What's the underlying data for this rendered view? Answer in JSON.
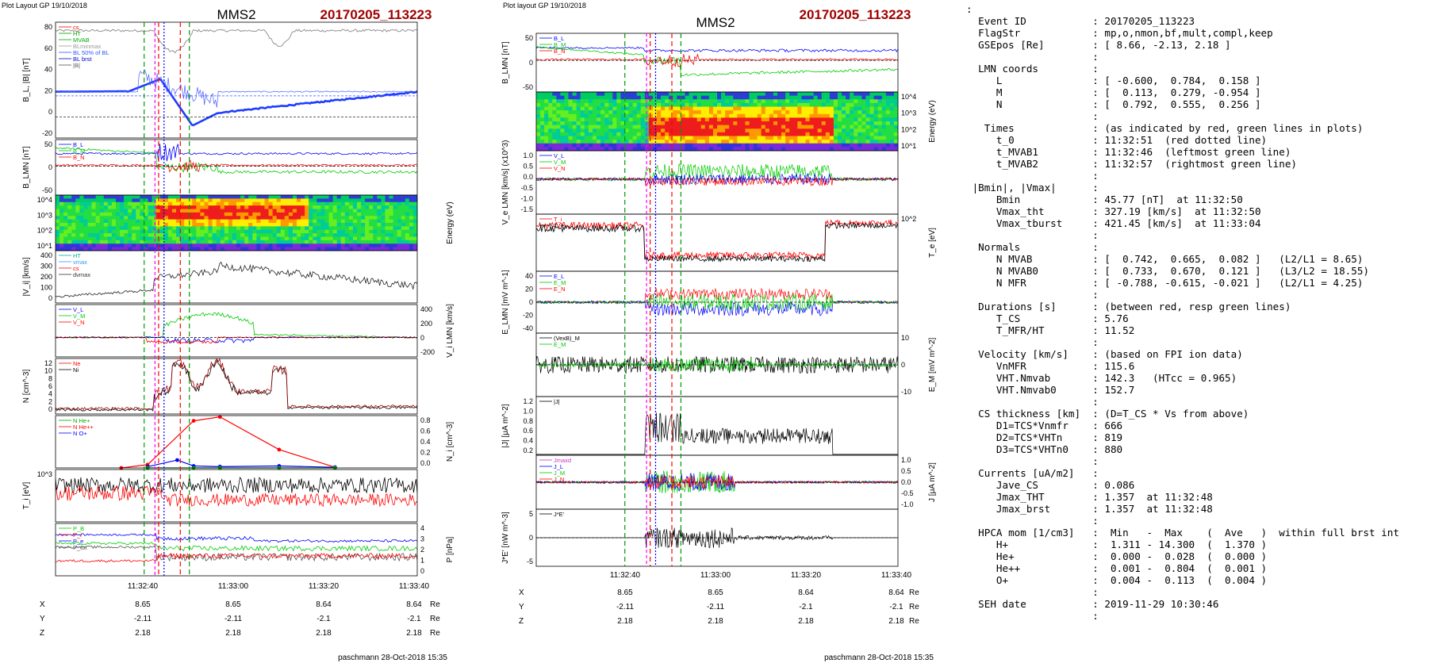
{
  "left_figure": {
    "header": "Plot Layout GP 19/10/2018",
    "spacecraft": "MMS2",
    "event_label": "20170205_113223",
    "footer": "paschmann 28-Oct-2018 15:35",
    "time_ticks": [
      "11:32:40",
      "11:33:00",
      "11:33:20",
      "11:33:40"
    ],
    "ephemeris": {
      "rows": [
        {
          "label": "X",
          "values": [
            "8.65",
            "8.65",
            "8.64",
            "8.64"
          ],
          "unit": "Re"
        },
        {
          "label": "Y",
          "values": [
            "-2.11",
            "-2.11",
            "-2.1",
            "-2.1"
          ],
          "unit": "Re"
        },
        {
          "label": "Z",
          "values": [
            "2.18",
            "2.18",
            "2.18",
            "2.18"
          ],
          "unit": "Re"
        }
      ]
    }
  },
  "right_figure": {
    "header": "Plot layout GP 19/10/2018",
    "spacecraft": "MMS2",
    "event_label": "20170205_113223",
    "footer": "paschmann 28-Oct-2018 15:35",
    "time_ticks": [
      "11:32:40",
      "11:33:00",
      "11:33:20",
      "11:33:40"
    ],
    "ephemeris": {
      "rows": [
        {
          "label": "X",
          "values": [
            "8.65",
            "8.65",
            "8.64",
            "8.64"
          ],
          "unit": "Re"
        },
        {
          "label": "Y",
          "values": [
            "-2.11",
            "-2.11",
            "-2.1",
            "-2.1"
          ],
          "unit": "Re"
        },
        {
          "label": "Z",
          "values": [
            "2.18",
            "2.18",
            "2.18",
            "2.18"
          ],
          "unit": "Re"
        }
      ]
    }
  },
  "summary_lines": [
    ":",
    "  Event ID           : 20170205_113223",
    "  FlagStr            : mp,o,nmon,bf,mult,compl,keep",
    "  GSEpos [Re]        : [ 8.66, -2.13, 2.18 ]",
    "                     :",
    "  LMN coords         :",
    "     L               : [ -0.600,  0.784,  0.158 ]",
    "     M               : [  0.113,  0.279, -0.954 ]",
    "     N               : [  0.792,  0.555,  0.256 ]",
    "                     :",
    "   Times             : (as indicated by red, green lines in plots)",
    "     t_0             : 11:32:51  (red dotted line)",
    "     t_MVAB1         : 11:32:46  (leftmost green line)",
    "     t_MVAB2         : 11:32:57  (rightmost green line)",
    "                     :",
    " |Bmin|, |Vmax|      :",
    "     Bmin            : 45.77 [nT]  at 11:32:50",
    "     Vmax_tht        : 327.19 [km/s]  at 11:32:50",
    "     Vmax_tburst     : 421.45 [km/s]  at 11:33:04",
    "                     :",
    "  Normals            :",
    "     N MVAB          : [  0.742,  0.665,  0.082 ]   (L2/L1 = 8.65)",
    "     N MVAB0         : [  0.733,  0.670,  0.121 ]   (L3/L2 = 18.55)",
    "     N MFR           : [ -0.788, -0.615, -0.021 ]   (L2/L1 = 4.25)",
    "                     :",
    "  Durations [s]      : (between red, resp green lines)",
    "     T_CS            : 5.76",
    "     T_MFR/HT        : 11.52",
    "                     :",
    "  Velocity [km/s]    : (based on FPI ion data)",
    "     VnMFR           : 115.6",
    "     VHT.Nmvab       : 142.3   (HTcc = 0.965)",
    "     VHT.Nmvab0      : 152.7",
    "                     :",
    "  CS thickness [km]  : (D=T_CS * Vs from above)",
    "     D1=TCS*Vnmfr    : 666",
    "     D2=TCS*VHTn     : 819",
    "     D3=TCS*VHTn0    : 880",
    "                     :",
    "  Currents [uA/m2]   :",
    "     Jave_CS         : 0.086",
    "     Jmax_THT        : 1.357  at 11:32:48",
    "     Jmax_brst       : 1.357  at 11:32:48",
    "                     :",
    "  HPCA mom [1/cm3]   :  Min   -  Max    (  Ave   )  within full brst int",
    "     H+              :  1.311 - 14.300  (  1.370 )",
    "     He+             :  0.000 -  0.028  (  0.000 )",
    "     He++            :  0.001 -  0.804  (  0.001 )",
    "     O+              :  0.004 -  0.113  (  0.004 )",
    "                     :",
    "  SEH date           : 2019-11-29 10:30:46",
    "                     :"
  ],
  "colors": {
    "L": "#0000ff",
    "M": "#00cc00",
    "N": "#ff0000",
    "total": "#000000",
    "red_marker": "#ff0000",
    "green_marker": "#009900",
    "magenta_marker": "#ff00ff",
    "blue_marker": "#0000ff"
  },
  "chart_data": [
    {
      "type": "line",
      "figure": "left",
      "time_axis": {
        "ticks": [
          "11:32:40",
          "11:33:00",
          "11:33:20",
          "11:33:40"
        ]
      },
      "panels": [
        {
          "id": "L1",
          "ylabel": "B_L, |B| [nT]",
          "yticks": [
            "80",
            "60",
            "40",
            "20",
            "0",
            "-20"
          ],
          "ylim": [
            -20,
            90
          ],
          "legend": [
            "cs",
            "HT",
            "MVAB",
            "BLminmax",
            "BL 50% of BL",
            "BL brst",
            "|B|"
          ]
        },
        {
          "id": "L2",
          "ylabel": "B_LMN [nT]",
          "yticks": [
            "50",
            "0",
            "-50"
          ],
          "ylim": [
            -60,
            55
          ],
          "legend": [
            "B_L",
            "B_M",
            "B_N"
          ]
        },
        {
          "id": "L3",
          "type": "heatmap",
          "ylabel_right": "Energy (eV)",
          "yticks": [
            "10^4",
            "10^3",
            "10^2",
            "10^1"
          ]
        },
        {
          "id": "L4",
          "ylabel": "|V_i| [km/s]",
          "yticks": [
            "400",
            "300",
            "200",
            "100",
            "0"
          ],
          "ylim": [
            0,
            420
          ],
          "legend": [
            "HT",
            "vmax",
            "cs",
            "dvmax"
          ]
        },
        {
          "id": "L5",
          "ylabel_right": "V_i LMN [km/s]",
          "yticks_right": [
            "400",
            "200",
            "0",
            "-200"
          ],
          "ylim": [
            -250,
            420
          ],
          "legend": [
            "V_L",
            "V_M",
            "V_N"
          ]
        },
        {
          "id": "L6",
          "ylabel": "N [cm^-3]",
          "yticks": [
            "12",
            "10",
            "8",
            "6",
            "4",
            "2",
            "0"
          ],
          "ylim": [
            0,
            13
          ],
          "legend": [
            "Ne",
            "Ni"
          ]
        },
        {
          "id": "L7",
          "ylabel_right": "N_i [cm^-3]",
          "yticks_right": [
            "0.8",
            "0.6",
            "0.4",
            "0.2",
            "0.0"
          ],
          "ylim": [
            0,
            0.8
          ],
          "legend": [
            "N He+",
            "N He++",
            "N O+"
          ],
          "series": [
            {
              "name": "N He++",
              "x": [
                -20,
                -12,
                2,
                10,
                28,
                45
              ],
              "values": [
                0.0,
                0.05,
                0.72,
                0.78,
                0.28,
                0.01
              ]
            },
            {
              "name": "N O+",
              "x": [
                -12,
                -3,
                2,
                10,
                28,
                45
              ],
              "values": [
                0.02,
                0.12,
                0.03,
                0.02,
                0.03,
                0.01
              ]
            },
            {
              "name": "N He+",
              "x": [
                -12,
                2,
                10,
                28,
                45
              ],
              "values": [
                0.0,
                0.0,
                0.0,
                0.0,
                0.0
              ]
            }
          ]
        },
        {
          "id": "L8",
          "ylabel": "T_i [eV]",
          "yticks": [
            "10^3"
          ]
        },
        {
          "id": "L9",
          "ylabel_right": "P [nPa]",
          "yticks_right": [
            "4",
            "3",
            "2",
            "1",
            "0"
          ],
          "ylim": [
            0,
            4
          ],
          "legend": [
            "P_B",
            "P_i",
            "P_e",
            "P_tot"
          ]
        }
      ]
    },
    {
      "type": "line",
      "figure": "right",
      "time_axis": {
        "ticks": [
          "11:32:40",
          "11:33:00",
          "11:33:20",
          "11:33:40"
        ]
      },
      "panels": [
        {
          "id": "R1",
          "ylabel": "B_LMN [nT]",
          "yticks": [
            "50",
            "0",
            "-50"
          ],
          "ylim": [
            -70,
            60
          ],
          "legend": [
            "B_L",
            "B_M",
            "B_N"
          ]
        },
        {
          "id": "R2",
          "type": "heatmap",
          "ylabel_right": "Energy (eV)",
          "yticks": [
            "10^4",
            "10^3",
            "10^2",
            "10^1"
          ]
        },
        {
          "id": "R3",
          "ylabel": "V_e LMN [km/s] (x10^3)",
          "yticks": [
            "1.0",
            "0.5",
            "0.0",
            "-0.5",
            "-1.0",
            "-1.5"
          ],
          "ylim": [
            -1.6,
            1.3
          ],
          "legend": [
            "V_L",
            "V_M",
            "V_N"
          ]
        },
        {
          "id": "R4",
          "ylabel_right": "T_e [eV]",
          "yticks_right": [
            "10^2"
          ],
          "legend": [
            "T_i",
            "T_e"
          ]
        },
        {
          "id": "R5",
          "ylabel": "E_LMN [mV m^-1]",
          "yticks": [
            "40",
            "20",
            "0",
            "-20",
            "-40"
          ],
          "ylim": [
            -45,
            45
          ],
          "legend": [
            "E_L",
            "E_M",
            "E_N"
          ]
        },
        {
          "id": "R6",
          "ylabel_right": "E_M [mV m^-2]",
          "yticks_right": [
            "10",
            "0",
            "-10"
          ],
          "ylim": [
            -15,
            15
          ],
          "legend": [
            "(VexB)_M",
            "E_M"
          ]
        },
        {
          "id": "R7",
          "ylabel": "|J| [μA m^-2]",
          "yticks": [
            "1.2",
            "1.0",
            "0.8",
            "0.6",
            "0.4",
            "0.2"
          ],
          "ylim": [
            0,
            1.3
          ],
          "legend": [
            "|J|"
          ]
        },
        {
          "id": "R8",
          "ylabel_right": "J [μA m^-2]",
          "yticks_right": [
            "1.0",
            "0.5",
            "0.0",
            "-0.5",
            "-1.0"
          ],
          "ylim": [
            -1.2,
            1.2
          ],
          "legend": [
            "Jmaxd",
            "J_L",
            "J_M",
            "J_N"
          ]
        },
        {
          "id": "R9",
          "ylabel": "J*E' [nW m^-3]",
          "yticks": [
            "5",
            "0",
            "-5"
          ],
          "ylim": [
            -7,
            7
          ],
          "legend": [
            "J*E'"
          ]
        }
      ]
    }
  ]
}
